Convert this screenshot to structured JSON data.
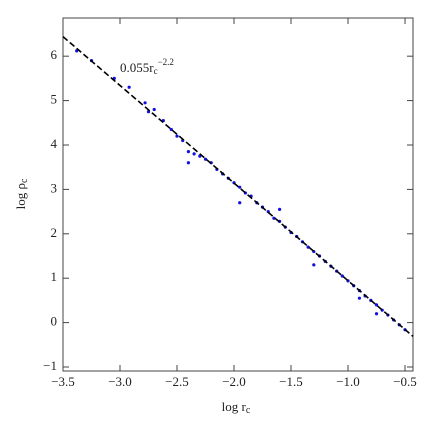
{
  "chart_data": {
    "type": "scatter",
    "x_label": {
      "main": "log r",
      "sub": "c"
    },
    "y_label": {
      "main": "log ρ",
      "sub": "c"
    },
    "annotation": {
      "main": "0.055r",
      "sub": "c",
      "sup": "−2.2"
    },
    "xlim": [
      -3.5,
      -0.43
    ],
    "ylim": [
      -1.09,
      6.86
    ],
    "xticks": [
      {
        "value": -3.5,
        "label": "−3.5"
      },
      {
        "value": -3.0,
        "label": "−3.0"
      },
      {
        "value": -2.5,
        "label": "−2.5"
      },
      {
        "value": -2.0,
        "label": "−2.0"
      },
      {
        "value": -1.5,
        "label": "−1.5"
      },
      {
        "value": -1.0,
        "label": "−1.0"
      },
      {
        "value": -0.5,
        "label": "−0.5"
      }
    ],
    "yticks": [
      {
        "value": -1,
        "label": "−1"
      },
      0,
      1,
      2,
      3,
      4,
      5,
      6
    ],
    "series": [
      {
        "color": "#1010e0",
        "x": [
          -3.38,
          -3.25,
          -3.05,
          -2.92,
          -2.78,
          -2.75,
          -2.7,
          -2.62,
          -2.55,
          -2.5,
          -2.45,
          -2.4,
          -2.35,
          -2.3,
          -2.25,
          -2.2,
          -2.15,
          -2.1,
          -2.05,
          -2.0,
          -1.95,
          -1.9,
          -1.85,
          -1.8,
          -1.75,
          -1.7,
          -1.65,
          -1.6,
          -1.55,
          -1.5,
          -1.45,
          -1.4,
          -1.35,
          -1.3,
          -1.25,
          -1.2,
          -1.15,
          -1.1,
          -1.05,
          -1.0,
          -0.95,
          -0.9,
          -0.85,
          -0.8,
          -0.75,
          -0.7,
          -0.65,
          -0.6,
          -0.55,
          -0.5,
          -2.4,
          -1.3,
          -0.9,
          -1.95,
          -0.75,
          -1.6
        ],
        "values": [
          6.12,
          5.9,
          5.5,
          5.3,
          4.95,
          4.75,
          4.8,
          4.55,
          4.35,
          4.2,
          4.1,
          3.85,
          3.8,
          3.75,
          3.68,
          3.6,
          3.45,
          3.35,
          3.25,
          3.15,
          3.05,
          2.92,
          2.85,
          2.7,
          2.6,
          2.5,
          2.35,
          2.28,
          2.15,
          2.03,
          1.94,
          1.82,
          1.7,
          1.6,
          1.5,
          1.38,
          1.27,
          1.16,
          1.05,
          0.94,
          0.83,
          0.72,
          0.6,
          0.5,
          0.4,
          0.28,
          0.17,
          0.06,
          -0.05,
          -0.16,
          3.6,
          1.3,
          0.55,
          2.7,
          0.2,
          2.55
        ]
      }
    ],
    "fit_line": {
      "x": [
        -3.5,
        -0.43
      ],
      "values": [
        6.44,
        -0.31
      ],
      "color": "#000000",
      "dashed": true
    }
  }
}
